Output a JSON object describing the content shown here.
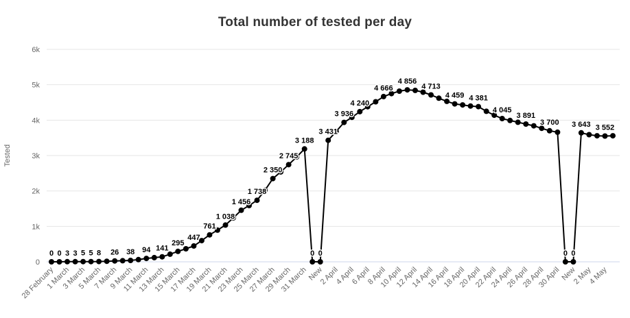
{
  "chart_data": {
    "type": "line",
    "title": "Total number of tested per day",
    "ylabel": "Tested",
    "ylim": [
      0,
      6000
    ],
    "grid": true,
    "legend": "none",
    "y_tick_labels": [
      "0",
      "1k",
      "2k",
      "3k",
      "4k",
      "5k",
      "6k"
    ],
    "colors": {
      "line": "#000000",
      "marker": "#000000",
      "grid": "#e6e6e6",
      "axis_line": "#ccd6eb",
      "tick_text": "#666666",
      "title_text": "#333333",
      "value_label": "#000000",
      "value_label_halo": "#ffffff",
      "background": "#ffffff"
    },
    "points": [
      {
        "value": 0,
        "label": "0",
        "tick": "28 February"
      },
      {
        "value": 0,
        "label": "0"
      },
      {
        "value": 3,
        "label": "3",
        "tick": "1 March"
      },
      {
        "value": 3,
        "label": "3"
      },
      {
        "value": 5,
        "label": "5",
        "tick": "3 March"
      },
      {
        "value": 5,
        "label": "5"
      },
      {
        "value": 8,
        "label": "8",
        "tick": "5 March"
      },
      {
        "value": 16
      },
      {
        "value": 26,
        "label": "26",
        "tick": "7 March"
      },
      {
        "value": 31
      },
      {
        "value": 38,
        "label": "38",
        "tick": "9 March"
      },
      {
        "value": 62
      },
      {
        "value": 94,
        "label": "94",
        "tick": "11 March"
      },
      {
        "value": 118
      },
      {
        "value": 141,
        "label": "141",
        "tick": "13 March"
      },
      {
        "value": 215
      },
      {
        "value": 295,
        "label": "295",
        "tick": "15 March"
      },
      {
        "value": 368
      },
      {
        "value": 447,
        "label": "447",
        "tick": "17 March"
      },
      {
        "value": 598
      },
      {
        "value": 761,
        "label": "761",
        "tick": "19 March"
      },
      {
        "value": 895
      },
      {
        "value": 1038,
        "label": "1 038",
        "tick": "21 March"
      },
      {
        "value": 1240
      },
      {
        "value": 1456,
        "label": "1 456",
        "tick": "23 March"
      },
      {
        "value": 1590
      },
      {
        "value": 1738,
        "label": "1 738",
        "tick": "25 March"
      },
      {
        "value": 2020
      },
      {
        "value": 2350,
        "label": "2 350",
        "tick": "27 March"
      },
      {
        "value": 2540
      },
      {
        "value": 2745,
        "label": "2 745",
        "tick": "29 March"
      },
      {
        "value": 2960
      },
      {
        "value": 3188,
        "label": "3 188",
        "tick": "31 March"
      },
      {
        "value": 0,
        "label": "0"
      },
      {
        "value": 0,
        "label": "0",
        "tick": "New"
      },
      {
        "value": 3431,
        "label": "3 431"
      },
      {
        "value": 3680,
        "tick": "2 April"
      },
      {
        "value": 3936,
        "label": "3 936"
      },
      {
        "value": 4080,
        "tick": "4 April"
      },
      {
        "value": 4240,
        "label": "4 240"
      },
      {
        "value": 4380,
        "tick": "6 April"
      },
      {
        "value": 4520
      },
      {
        "value": 4666,
        "label": "4 666",
        "tick": "8 April"
      },
      {
        "value": 4750
      },
      {
        "value": 4820,
        "tick": "10 April"
      },
      {
        "value": 4856,
        "label": "4 856"
      },
      {
        "value": 4840,
        "tick": "12 April"
      },
      {
        "value": 4790
      },
      {
        "value": 4713,
        "label": "4 713",
        "tick": "14 April"
      },
      {
        "value": 4620
      },
      {
        "value": 4530,
        "tick": "16 April"
      },
      {
        "value": 4459,
        "label": "4 459"
      },
      {
        "value": 4430,
        "tick": "18 April"
      },
      {
        "value": 4400
      },
      {
        "value": 4381,
        "label": "4 381",
        "tick": "20 April"
      },
      {
        "value": 4250
      },
      {
        "value": 4140,
        "tick": "22 April"
      },
      {
        "value": 4045,
        "label": "4 045"
      },
      {
        "value": 3990,
        "tick": "24 April"
      },
      {
        "value": 3940
      },
      {
        "value": 3891,
        "label": "3 891",
        "tick": "26 April"
      },
      {
        "value": 3840
      },
      {
        "value": 3770,
        "tick": "28 April"
      },
      {
        "value": 3700,
        "label": "3 700"
      },
      {
        "value": 3660,
        "tick": "30 April"
      },
      {
        "value": 0,
        "label": "0"
      },
      {
        "value": 0,
        "label": "0",
        "tick": "New"
      },
      {
        "value": 3643,
        "label": "3 643"
      },
      {
        "value": 3590,
        "tick": "2 May"
      },
      {
        "value": 3560
      },
      {
        "value": 3552,
        "label": "3 552",
        "tick": "4 May"
      },
      {
        "value": 3560
      }
    ]
  }
}
